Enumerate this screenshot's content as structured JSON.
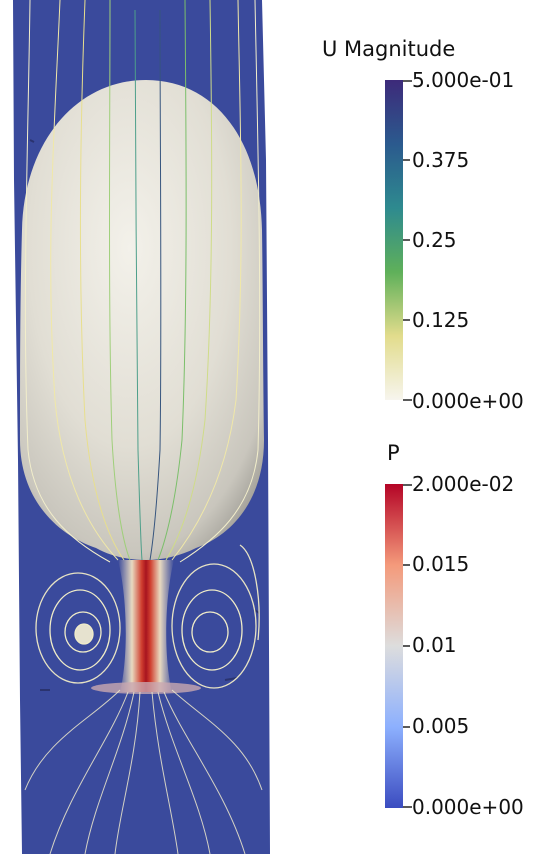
{
  "colors": {
    "background_field": "#3a4a9c",
    "bubble": "#e6e3da",
    "jet_high": "#b2182b",
    "streamline_low": "#f2eecb"
  },
  "u_colorbar": {
    "title": "U Magnitude",
    "range": [
      0,
      0.5
    ],
    "labels": [
      "5.000e-01",
      "0.375",
      "0.25",
      "0.125",
      "0.000e+00"
    ],
    "gradient": [
      "#f7f5ee",
      "#e2dc8c",
      "#5fb05a",
      "#2e8a8f",
      "#2b5a8e",
      "#3d2a7a"
    ]
  },
  "p_colorbar": {
    "title": "P",
    "range": [
      0,
      0.02
    ],
    "labels": [
      "2.000e-02",
      "0.015",
      "0.01",
      "0.005",
      "0.000e+00"
    ],
    "gradient": [
      "#3b4cc0",
      "#8db0fe",
      "#dddddd",
      "#f49a7b",
      "#b40426"
    ]
  }
}
